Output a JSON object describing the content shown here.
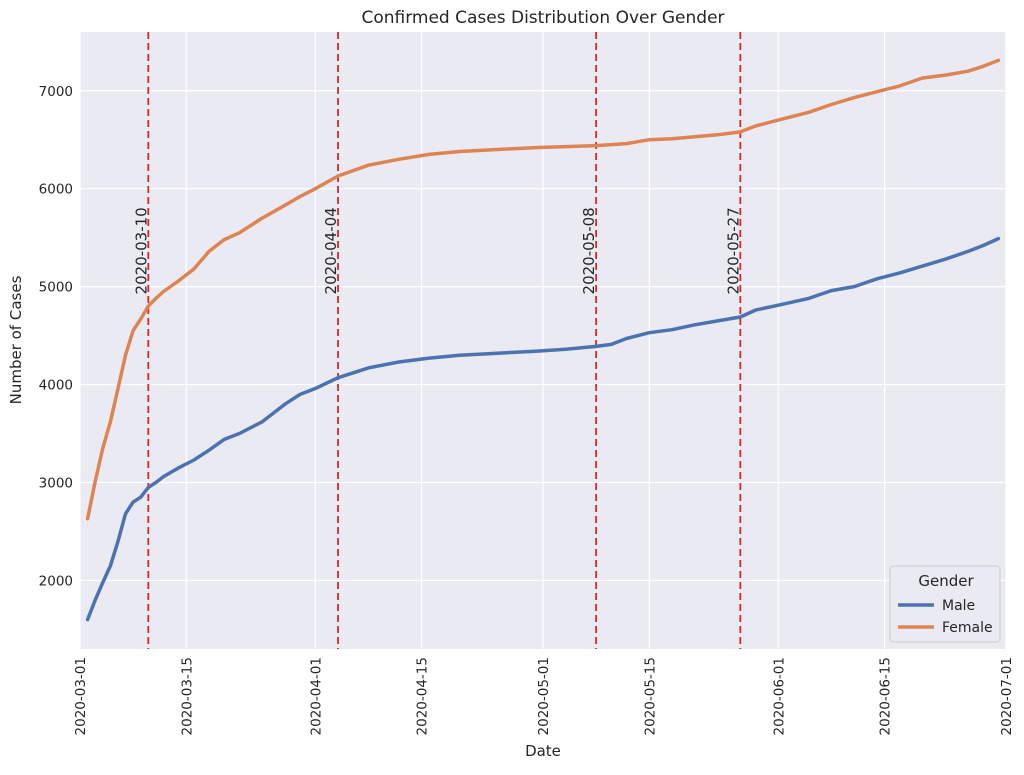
{
  "chart_data": {
    "type": "line",
    "title": "Confirmed Cases Distribution Over Gender",
    "xlabel": "Date",
    "ylabel": "Number of Cases",
    "xlim": [
      "2020-03-01",
      "2020-07-01"
    ],
    "ylim": [
      1300,
      7600
    ],
    "x_ticks": [
      "2020-03-01",
      "2020-03-15",
      "2020-04-01",
      "2020-04-15",
      "2020-05-01",
      "2020-05-15",
      "2020-06-01",
      "2020-06-15",
      "2020-07-01"
    ],
    "y_ticks": [
      2000,
      3000,
      4000,
      5000,
      6000,
      7000
    ],
    "grid": true,
    "legend": {
      "title": "Gender",
      "placement": "lower-right"
    },
    "colors": {
      "Male": "#4c72b0",
      "Female": "#dd8452",
      "vline": "#d62728",
      "background": "#eaeaf2"
    },
    "vlines": [
      "2020-03-10",
      "2020-04-04",
      "2020-05-08",
      "2020-05-27"
    ],
    "series": [
      {
        "name": "Male",
        "x": [
          "2020-03-02",
          "2020-03-03",
          "2020-03-04",
          "2020-03-05",
          "2020-03-06",
          "2020-03-07",
          "2020-03-08",
          "2020-03-09",
          "2020-03-10",
          "2020-03-11",
          "2020-03-12",
          "2020-03-14",
          "2020-03-16",
          "2020-03-18",
          "2020-03-20",
          "2020-03-22",
          "2020-03-25",
          "2020-03-28",
          "2020-03-30",
          "2020-04-01",
          "2020-04-04",
          "2020-04-08",
          "2020-04-12",
          "2020-04-16",
          "2020-04-20",
          "2020-04-25",
          "2020-04-30",
          "2020-05-04",
          "2020-05-08",
          "2020-05-10",
          "2020-05-12",
          "2020-05-15",
          "2020-05-18",
          "2020-05-21",
          "2020-05-24",
          "2020-05-27",
          "2020-05-29",
          "2020-06-01",
          "2020-06-05",
          "2020-06-08",
          "2020-06-11",
          "2020-06-14",
          "2020-06-17",
          "2020-06-20",
          "2020-06-23",
          "2020-06-26",
          "2020-06-28",
          "2020-06-30"
        ],
        "values": [
          1600,
          1800,
          1980,
          2150,
          2400,
          2680,
          2800,
          2850,
          2950,
          3000,
          3060,
          3150,
          3230,
          3330,
          3440,
          3500,
          3620,
          3800,
          3900,
          3960,
          4070,
          4170,
          4230,
          4270,
          4300,
          4320,
          4340,
          4360,
          4390,
          4410,
          4470,
          4530,
          4560,
          4610,
          4650,
          4690,
          4760,
          4810,
          4880,
          4960,
          5000,
          5080,
          5140,
          5210,
          5280,
          5360,
          5420,
          5490
        ]
      },
      {
        "name": "Female",
        "x": [
          "2020-03-02",
          "2020-03-03",
          "2020-03-04",
          "2020-03-05",
          "2020-03-06",
          "2020-03-07",
          "2020-03-08",
          "2020-03-09",
          "2020-03-10",
          "2020-03-11",
          "2020-03-12",
          "2020-03-14",
          "2020-03-16",
          "2020-03-18",
          "2020-03-20",
          "2020-03-22",
          "2020-03-25",
          "2020-03-28",
          "2020-03-30",
          "2020-04-01",
          "2020-04-04",
          "2020-04-08",
          "2020-04-12",
          "2020-04-16",
          "2020-04-20",
          "2020-04-25",
          "2020-04-30",
          "2020-05-04",
          "2020-05-08",
          "2020-05-12",
          "2020-05-15",
          "2020-05-18",
          "2020-05-21",
          "2020-05-24",
          "2020-05-27",
          "2020-05-29",
          "2020-06-01",
          "2020-06-05",
          "2020-06-08",
          "2020-06-11",
          "2020-06-14",
          "2020-06-17",
          "2020-06-20",
          "2020-06-23",
          "2020-06-26",
          "2020-06-28",
          "2020-06-30"
        ],
        "values": [
          2630,
          3010,
          3350,
          3620,
          3960,
          4300,
          4550,
          4670,
          4800,
          4880,
          4950,
          5060,
          5180,
          5360,
          5480,
          5550,
          5700,
          5830,
          5920,
          6000,
          6130,
          6240,
          6300,
          6350,
          6380,
          6400,
          6420,
          6430,
          6440,
          6460,
          6500,
          6510,
          6530,
          6550,
          6580,
          6640,
          6700,
          6780,
          6860,
          6930,
          6990,
          7050,
          7130,
          7160,
          7200,
          7250,
          7310
        ]
      }
    ]
  }
}
